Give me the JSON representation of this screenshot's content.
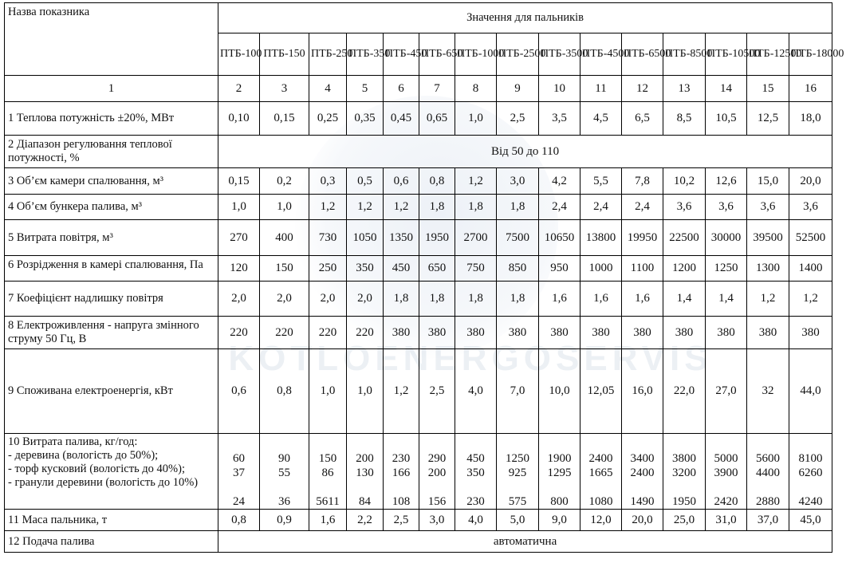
{
  "header": {
    "name_label": "Назва показника",
    "values_label": "Значення для пальників",
    "burners": [
      "ПТБ-100",
      "ПТБ-150",
      "ПТБ-250",
      "ПТБ-350",
      "ПТБ-450",
      "ПТБ-650",
      "ПТБ-1000",
      "ПТБ-2500",
      "ПТБ-3500",
      "ПТБ-4500",
      "ПТБ-6500",
      "ПТБ-8500",
      "ПТБ-10500",
      "ПТБ-12500",
      "ПТБ-18000"
    ],
    "col_numbers": [
      "1",
      "2",
      "3",
      "4",
      "5",
      "6",
      "7",
      "8",
      "9",
      "10",
      "11",
      "12",
      "13",
      "14",
      "15",
      "16"
    ]
  },
  "rows": [
    {
      "label": "1 Теплова потужність ±20%, МВт",
      "values": [
        "0,10",
        "0,15",
        "0,25",
        "0,35",
        "0,45",
        "0,65",
        "1,0",
        "2,5",
        "3,5",
        "4,5",
        "6,5",
        "8,5",
        "10,5",
        "12,5",
        "18,0"
      ]
    },
    {
      "label": "2 Діапазон регулювання теплової потужності, %",
      "span": "Від 50 до 110"
    },
    {
      "label": "3 Об’єм камери спалювання, м³",
      "values": [
        "0,15",
        "0,2",
        "0,3",
        "0,5",
        "0,6",
        "0,8",
        "1,2",
        "3,0",
        "4,2",
        "5,5",
        "7,8",
        "10,2",
        "12,6",
        "15,0",
        "20,0"
      ]
    },
    {
      "label": "4 Об’єм бункера палива, м³",
      "values": [
        "1,0",
        "1,0",
        "1,2",
        "1,2",
        "1,2",
        "1,8",
        "1,8",
        "1,8",
        "2,4",
        "2,4",
        "2,4",
        "3,6",
        "3,6",
        "3,6",
        "3,6"
      ]
    },
    {
      "label": "5 Витрата повітря, м³",
      "values": [
        "270",
        "400",
        "730",
        "1050",
        "1350",
        "1950",
        "2700",
        "7500",
        "10650",
        "13800",
        "19950",
        "22500",
        "30000",
        "39500",
        "52500"
      ]
    },
    {
      "label": "6 Розрідження в камері спалювання, Па",
      "values": [
        "120",
        "150",
        "250",
        "350",
        "450",
        "650",
        "750",
        "850",
        "950",
        "1000",
        "1100",
        "1200",
        "1250",
        "1300",
        "1400"
      ]
    },
    {
      "label": "7 Коефіцієнт надлишку повітря",
      "values": [
        "2,0",
        "2,0",
        "2,0",
        "2,0",
        "1,8",
        "1,8",
        "1,8",
        "1,8",
        "1,6",
        "1,6",
        "1,6",
        "1,4",
        "1,4",
        "1,2",
        "1,2"
      ]
    },
    {
      "label": "8 Електроживлення - напруга змінного струму 50 Гц, В",
      "values": [
        "220",
        "220",
        "220",
        "220",
        "380",
        "380",
        "380",
        "380",
        "380",
        "380",
        "380",
        "380",
        "380",
        "380",
        "380"
      ]
    },
    {
      "label": "9 Споживана електроенергія, кВт",
      "values": [
        "0,6",
        "0,8",
        "1,0",
        "1,0",
        "1,2",
        "2,5",
        "4,0",
        "7,0",
        "10,0",
        "12,05",
        "16,0",
        "22,0",
        "27,0",
        "32",
        "44,0"
      ]
    },
    {
      "label_lines": [
        "10 Витрата палива, кг/год:",
        "- деревина (вологість до 50%);",
        "-  торф кусковий (вологість до 40%);",
        "- гранули деревини (вологість до 10%)"
      ],
      "wood": [
        "60",
        "90",
        "150",
        "200",
        "230",
        "290",
        "450",
        "1250",
        "1900",
        "2400",
        "3400",
        "3800",
        "5000",
        "5600",
        "8100"
      ],
      "peat": [
        "37",
        "55",
        "86",
        "130",
        "166",
        "200",
        "350",
        "925",
        "1295",
        "1665",
        "2400",
        "3200",
        "3900",
        "4400",
        "6260"
      ],
      "pellets": [
        "24",
        "36",
        "5611",
        "84",
        "108",
        "156",
        "230",
        "575",
        "800",
        "1080",
        "1490",
        "1950",
        "2420",
        "2880",
        "4240"
      ]
    },
    {
      "label": "11 Маса пальника, т",
      "values": [
        "0,8",
        "0,9",
        "1,6",
        "2,2",
        "2,5",
        "3,0",
        "4,0",
        "5,0",
        "9,0",
        "12,0",
        "20,0",
        "25,0",
        "31,0",
        "37,0",
        "45,0"
      ]
    },
    {
      "label": "12 Подача палива",
      "span": "автоматична"
    }
  ],
  "watermark": {
    "text": "KOTLOENERGOSERVIS"
  }
}
